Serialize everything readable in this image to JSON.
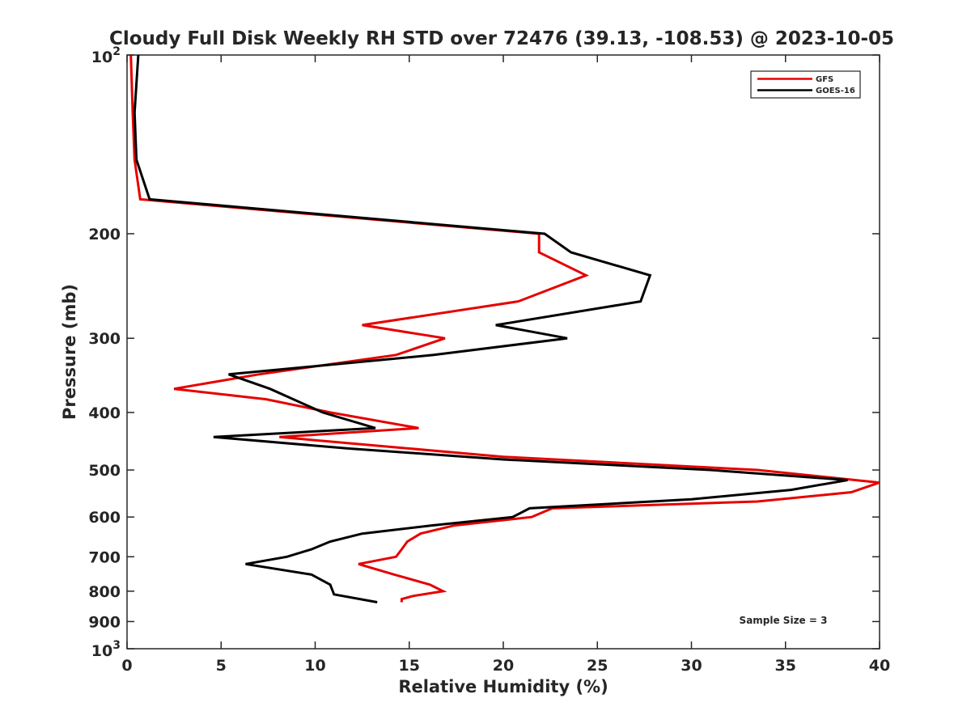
{
  "chart_data": {
    "type": "line",
    "title": "Cloudy Full Disk Weekly RH STD over 72476 (39.13, -108.53) @ 2023-10-05",
    "xlabel": "Relative Humidity (%)",
    "ylabel": "Pressure (mb)",
    "xlim": [
      0,
      40
    ],
    "ylim": [
      100,
      1000
    ],
    "yscale": "log",
    "y_reversed": true,
    "x_ticks": [
      "0",
      "5",
      "10",
      "15",
      "20",
      "25",
      "30",
      "35",
      "40"
    ],
    "y_ticks": [
      {
        "value": 100,
        "base": "10",
        "exp": "2"
      },
      {
        "value": 200,
        "label": "200"
      },
      {
        "value": 300,
        "label": "300"
      },
      {
        "value": 400,
        "label": "400"
      },
      {
        "value": 500,
        "label": "500"
      },
      {
        "value": 600,
        "label": "600"
      },
      {
        "value": 700,
        "label": "700"
      },
      {
        "value": 800,
        "label": "800"
      },
      {
        "value": 900,
        "label": "900"
      },
      {
        "value": 1000,
        "base": "10",
        "exp": "3"
      }
    ],
    "grid": false,
    "legend_position": "top-right",
    "annotation": "Sample Size = 3",
    "series": [
      {
        "name": "GFS",
        "color": "#e60000",
        "points": [
          [
            0.2,
            100
          ],
          [
            0.3,
            125
          ],
          [
            0.4,
            150
          ],
          [
            0.7,
            175
          ],
          [
            21.9,
            200
          ],
          [
            21.9,
            215
          ],
          [
            24.4,
            235
          ],
          [
            20.8,
            260
          ],
          [
            12.5,
            285
          ],
          [
            16.9,
            300
          ],
          [
            14.3,
            320
          ],
          [
            7.0,
            345
          ],
          [
            2.5,
            365
          ],
          [
            7.4,
            380
          ],
          [
            10.8,
            400
          ],
          [
            15.5,
            425
          ],
          [
            8.1,
            440
          ],
          [
            15.0,
            460
          ],
          [
            20.0,
            475
          ],
          [
            33.5,
            500
          ],
          [
            40.0,
            525
          ],
          [
            38.5,
            545
          ],
          [
            33.5,
            565
          ],
          [
            22.6,
            580
          ],
          [
            21.5,
            600
          ],
          [
            17.4,
            620
          ],
          [
            15.6,
            640
          ],
          [
            14.9,
            660
          ],
          [
            14.6,
            680
          ],
          [
            14.3,
            700
          ],
          [
            12.3,
            720
          ],
          [
            14.2,
            750
          ],
          [
            16.1,
            780
          ],
          [
            16.8,
            800
          ],
          [
            15.2,
            815
          ],
          [
            14.6,
            825
          ],
          [
            14.6,
            835
          ]
        ]
      },
      {
        "name": "GOES-16",
        "color": "#000000",
        "points": [
          [
            0.6,
            100
          ],
          [
            0.4,
            125
          ],
          [
            0.5,
            150
          ],
          [
            1.2,
            175
          ],
          [
            22.2,
            200
          ],
          [
            23.6,
            215
          ],
          [
            27.8,
            235
          ],
          [
            27.3,
            260
          ],
          [
            19.6,
            285
          ],
          [
            23.4,
            300
          ],
          [
            16.3,
            320
          ],
          [
            5.4,
            345
          ],
          [
            7.6,
            365
          ],
          [
            10.4,
            400
          ],
          [
            13.2,
            425
          ],
          [
            4.6,
            440
          ],
          [
            11.8,
            460
          ],
          [
            20.0,
            480
          ],
          [
            31.0,
            500
          ],
          [
            38.3,
            520
          ],
          [
            35.3,
            540
          ],
          [
            30.0,
            560
          ],
          [
            21.4,
            580
          ],
          [
            20.5,
            600
          ],
          [
            16.2,
            620
          ],
          [
            12.5,
            640
          ],
          [
            10.8,
            660
          ],
          [
            9.8,
            680
          ],
          [
            8.5,
            700
          ],
          [
            6.3,
            720
          ],
          [
            9.8,
            750
          ],
          [
            10.8,
            780
          ],
          [
            11.0,
            810
          ],
          [
            13.3,
            835
          ]
        ]
      }
    ]
  }
}
